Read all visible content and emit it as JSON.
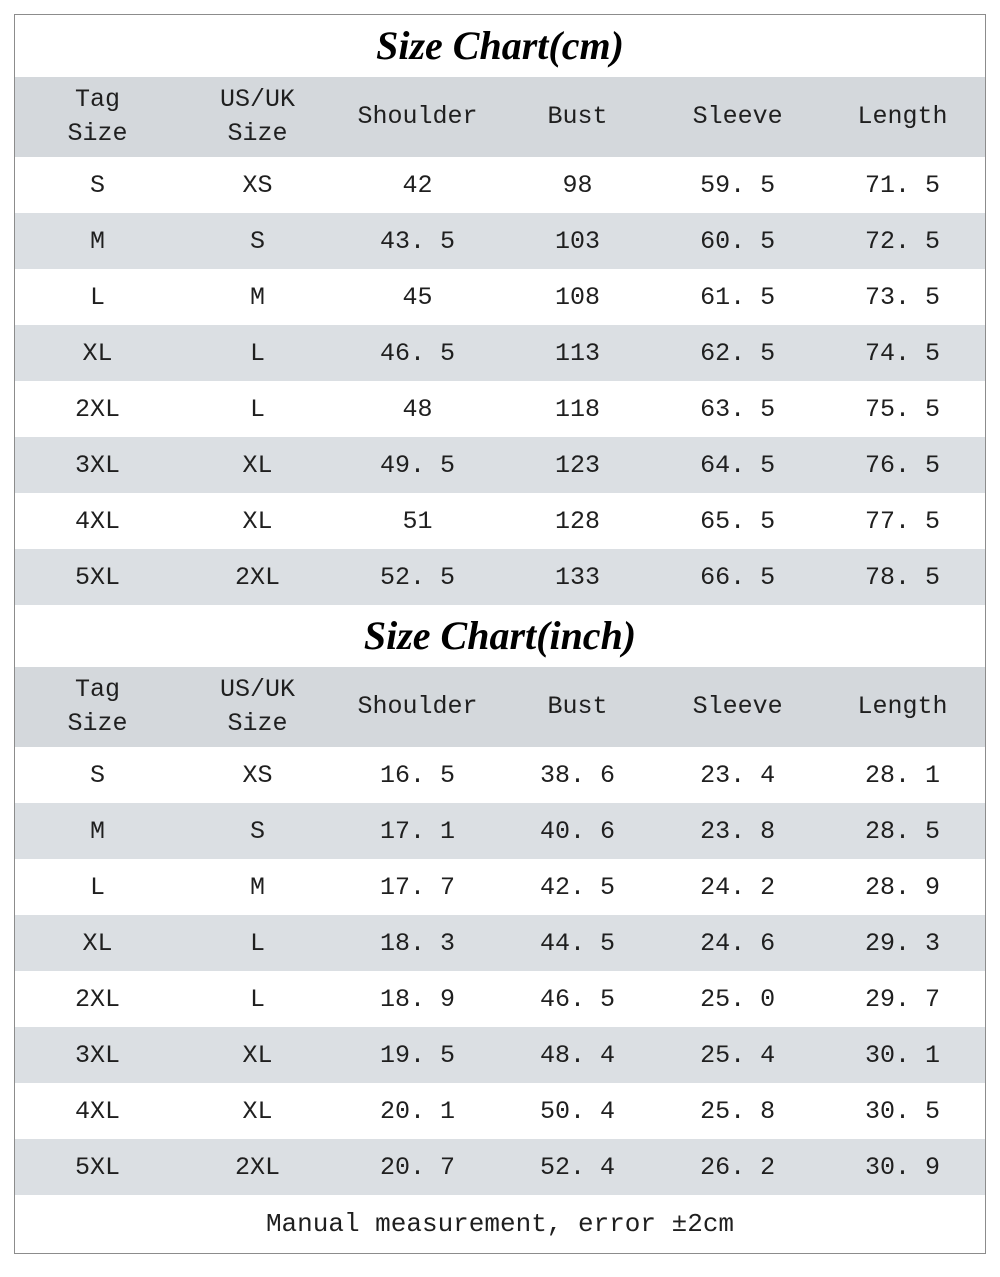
{
  "colors": {
    "header_bg": "#d4d8dc",
    "stripe_bg": "#dbdfe3",
    "border": "#8c8c8c",
    "text": "#1f1f1f"
  },
  "note": "Manual measurement, error ±2cm",
  "chart_data": [
    {
      "type": "table",
      "title": "Size Chart(cm)",
      "columns": [
        "Tag\nSize",
        "US/UK\nSize",
        "Shoulder",
        "Bust",
        "Sleeve",
        "Length"
      ],
      "rows": [
        [
          "S",
          "XS",
          "42",
          "98",
          "59. 5",
          "71. 5"
        ],
        [
          "M",
          "S",
          "43. 5",
          "103",
          "60. 5",
          "72. 5"
        ],
        [
          "L",
          "M",
          "45",
          "108",
          "61. 5",
          "73. 5"
        ],
        [
          "XL",
          "L",
          "46. 5",
          "113",
          "62. 5",
          "74. 5"
        ],
        [
          "2XL",
          "L",
          "48",
          "118",
          "63. 5",
          "75. 5"
        ],
        [
          "3XL",
          "XL",
          "49. 5",
          "123",
          "64. 5",
          "76. 5"
        ],
        [
          "4XL",
          "XL",
          "51",
          "128",
          "65. 5",
          "77. 5"
        ],
        [
          "5XL",
          "2XL",
          "52. 5",
          "133",
          "66. 5",
          "78. 5"
        ]
      ]
    },
    {
      "type": "table",
      "title": "Size Chart(inch)",
      "columns": [
        "Tag\nSize",
        "US/UK\nSize",
        "Shoulder",
        "Bust",
        "Sleeve",
        "Length"
      ],
      "rows": [
        [
          "S",
          "XS",
          "16. 5",
          "38. 6",
          "23. 4",
          "28. 1"
        ],
        [
          "M",
          "S",
          "17. 1",
          "40. 6",
          "23. 8",
          "28. 5"
        ],
        [
          "L",
          "M",
          "17. 7",
          "42. 5",
          "24. 2",
          "28. 9"
        ],
        [
          "XL",
          "L",
          "18. 3",
          "44. 5",
          "24. 6",
          "29. 3"
        ],
        [
          "2XL",
          "L",
          "18. 9",
          "46. 5",
          "25. 0",
          "29. 7"
        ],
        [
          "3XL",
          "XL",
          "19. 5",
          "48. 4",
          "25. 4",
          "30. 1"
        ],
        [
          "4XL",
          "XL",
          "20. 1",
          "50. 4",
          "25. 8",
          "30. 5"
        ],
        [
          "5XL",
          "2XL",
          "20. 7",
          "52. 4",
          "26. 2",
          "30. 9"
        ]
      ]
    }
  ]
}
